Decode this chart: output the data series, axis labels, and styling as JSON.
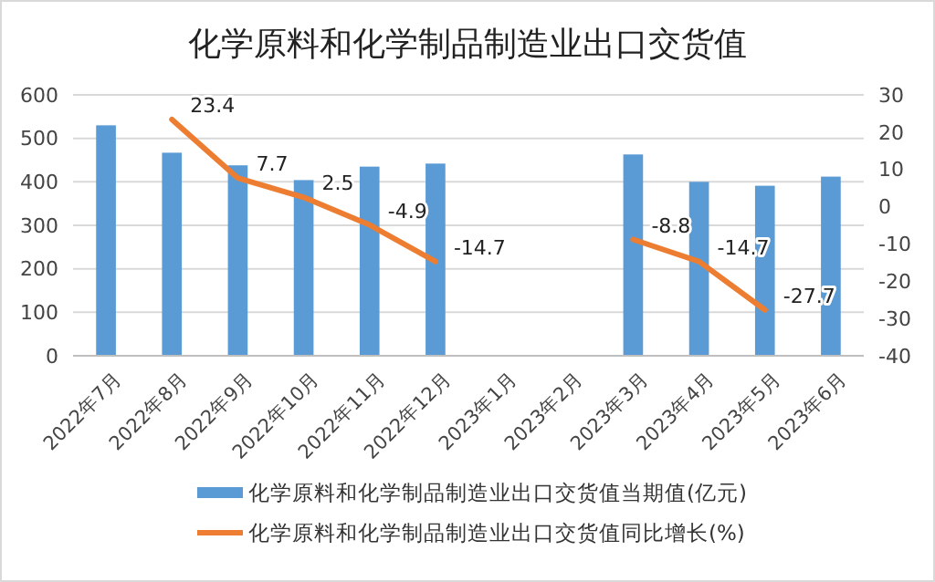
{
  "chart_data": {
    "type": "bar",
    "title": "化学原料和化学制品制造业出口交货值",
    "categories": [
      "2022年7月",
      "2022年8月",
      "2022年9月",
      "2022年10月",
      "2022年11月",
      "2022年12月",
      "2023年1月",
      "2023年2月",
      "2023年3月",
      "2023年4月",
      "2023年5月",
      "2023年6月"
    ],
    "series": [
      {
        "name": "化学原料和化学制品制造业出口交货值当期值(亿元)",
        "color": "#5b9bd5",
        "values": [
          530,
          467,
          438,
          404,
          435,
          442,
          null,
          null,
          463,
          400,
          391,
          412
        ]
      },
      {
        "name": "化学原料和化学制品制造业出口交货值同比增长(%)",
        "type": "line",
        "axis": "y2",
        "color": "#ed7d31",
        "values": [
          null,
          23.4,
          7.7,
          2.5,
          -4.9,
          -14.7,
          null,
          null,
          -8.8,
          -14.7,
          -27.7,
          null
        ],
        "value_labels": [
          null,
          "23.4",
          "7.7",
          "2.5",
          "-4.9",
          "-14.7",
          null,
          null,
          "-8.8",
          "-14.7",
          "-27.7",
          null
        ]
      }
    ],
    "ylim": [
      0,
      600
    ],
    "yticks": [
      0,
      100,
      200,
      300,
      400,
      500,
      600
    ],
    "y2lim": [
      -40,
      30
    ],
    "y2ticks": [
      -40,
      -30,
      -20,
      -10,
      0,
      10,
      20,
      30
    ],
    "grid": "y",
    "legend": "bottom",
    "marker": "none",
    "line_style": "solid"
  }
}
